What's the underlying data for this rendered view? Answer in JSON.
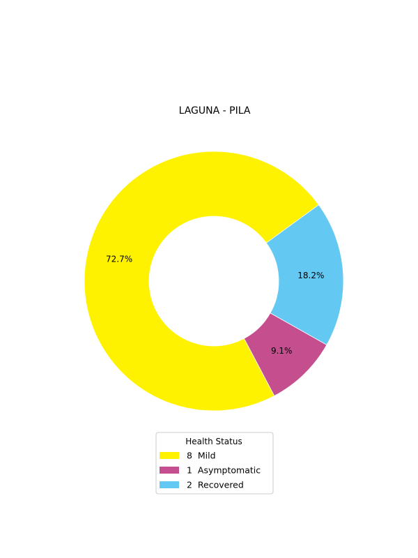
{
  "chart_data": {
    "type": "pie",
    "style": "donut",
    "title": "LAGUNA - PILA",
    "legend_title": "Health Status",
    "legend_position": "bottom-center",
    "start_angle_deg": 36,
    "direction": "counterclockwise",
    "slices": [
      {
        "name": "Mild",
        "count": 8,
        "label": "8  Mild",
        "percent_label": "72.7%",
        "color": "#FFF200"
      },
      {
        "name": "Asymptomatic",
        "count": 1,
        "label": "1  Asymptomatic",
        "percent_label": "9.1%",
        "color": "#C44E8E"
      },
      {
        "name": "Recovered",
        "count": 2,
        "label": "2  Recovered",
        "percent_label": "18.2%",
        "color": "#63C9F2"
      }
    ]
  }
}
